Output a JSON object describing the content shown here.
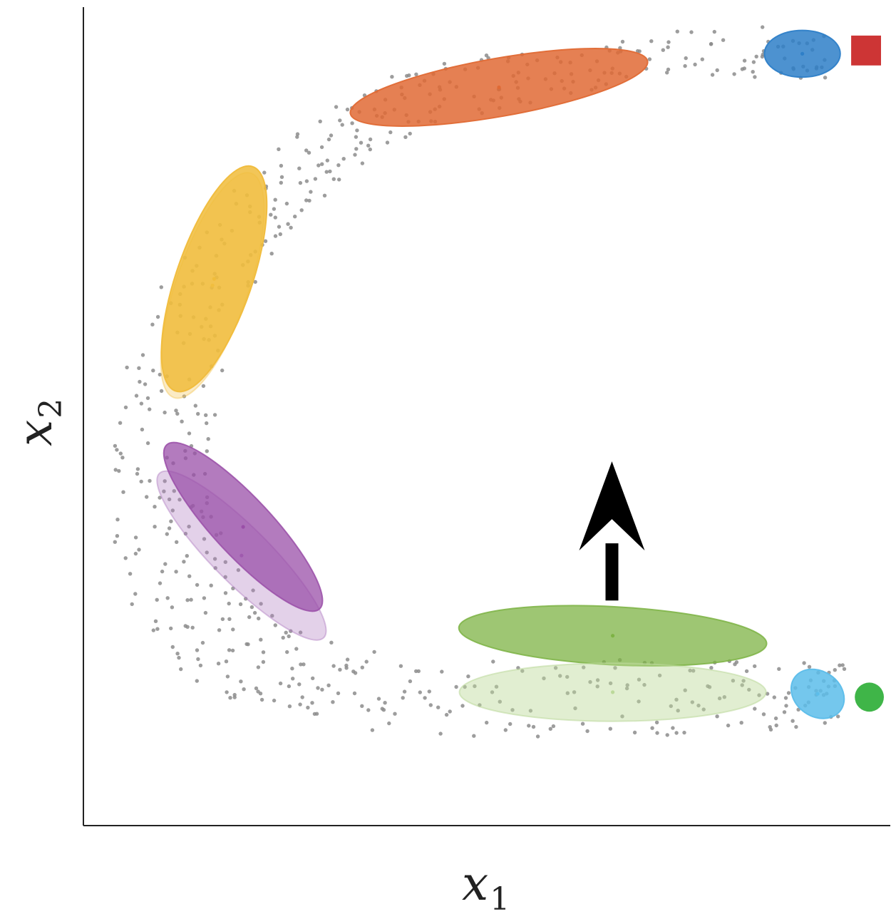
{
  "chart_data": {
    "type": "scatter",
    "title": "",
    "xlabel": "x1",
    "ylabel": "x2",
    "xlabel_parts": {
      "base": "x",
      "sub": "1"
    },
    "ylabel_parts": {
      "base": "x",
      "sub": "2"
    },
    "xlim": [
      0,
      1
    ],
    "ylim": [
      0,
      1
    ],
    "grid": false,
    "ticks": false,
    "trajectory_band": {
      "outer": [
        [
          0.92,
          0.977
        ],
        [
          0.55,
          0.955
        ],
        [
          0.3,
          0.87
        ],
        [
          0.1,
          0.66
        ],
        [
          0.03,
          0.38
        ],
        [
          0.12,
          0.19
        ],
        [
          0.33,
          0.12
        ],
        [
          0.7,
          0.105
        ],
        [
          0.94,
          0.125
        ]
      ],
      "inner": [
        [
          0.92,
          0.915
        ],
        [
          0.62,
          0.897
        ],
        [
          0.38,
          0.83
        ],
        [
          0.24,
          0.7
        ],
        [
          0.16,
          0.48
        ],
        [
          0.2,
          0.31
        ],
        [
          0.34,
          0.218
        ],
        [
          0.7,
          0.202
        ],
        [
          0.94,
          0.203
        ]
      ],
      "color": "#8c8c8c"
    },
    "gaussians": [
      {
        "name": "blue",
        "cx": 0.891,
        "cy": 0.943,
        "rx": 0.047,
        "ry": 0.029,
        "angle": 0,
        "color": "#2e7fc8",
        "opacity": 0.85
      },
      {
        "name": "orange",
        "cx": 0.515,
        "cy": 0.902,
        "rx": 0.187,
        "ry": 0.036,
        "angle": -10,
        "color": "#e06a35",
        "opacity": 0.85
      },
      {
        "name": "yellow-faint",
        "cx": 0.16,
        "cy": 0.66,
        "rx": 0.147,
        "ry": 0.045,
        "angle": -71,
        "color": "#f4c75a",
        "opacity": 0.35
      },
      {
        "name": "yellow",
        "cx": 0.162,
        "cy": 0.668,
        "rx": 0.147,
        "ry": 0.047,
        "angle": -71,
        "color": "#f0bc3b",
        "opacity": 0.85
      },
      {
        "name": "purple-faint",
        "cx": 0.196,
        "cy": 0.33,
        "rx": 0.144,
        "ry": 0.035,
        "angle": 45,
        "color": "#b07cc0",
        "opacity": 0.35
      },
      {
        "name": "purple",
        "cx": 0.198,
        "cy": 0.365,
        "rx": 0.139,
        "ry": 0.036,
        "angle": 47,
        "color": "#9a4fa8",
        "opacity": 0.75
      },
      {
        "name": "green",
        "cx": 0.656,
        "cy": 0.232,
        "rx": 0.191,
        "ry": 0.036,
        "angle": 3,
        "color": "#7db344",
        "opacity": 0.75
      },
      {
        "name": "green-faint",
        "cx": 0.656,
        "cy": 0.163,
        "rx": 0.19,
        "ry": 0.036,
        "angle": 0,
        "color": "#bcd99a",
        "opacity": 0.45
      },
      {
        "name": "light-blue",
        "cx": 0.91,
        "cy": 0.161,
        "rx": 0.035,
        "ry": 0.028,
        "angle": 35,
        "color": "#5cbdea",
        "opacity": 0.85
      }
    ],
    "markers": [
      {
        "name": "red-square",
        "shape": "square",
        "x": 0.97,
        "y": 0.947,
        "size": 0.037,
        "color": "#cd3535"
      },
      {
        "name": "green-circle",
        "shape": "circle",
        "x": 0.974,
        "y": 0.157,
        "size": 0.018,
        "color": "#3fb548"
      }
    ],
    "arrow": {
      "x": 0.655,
      "y_start": 0.275,
      "y_end": 0.445,
      "color": "#000000"
    }
  }
}
